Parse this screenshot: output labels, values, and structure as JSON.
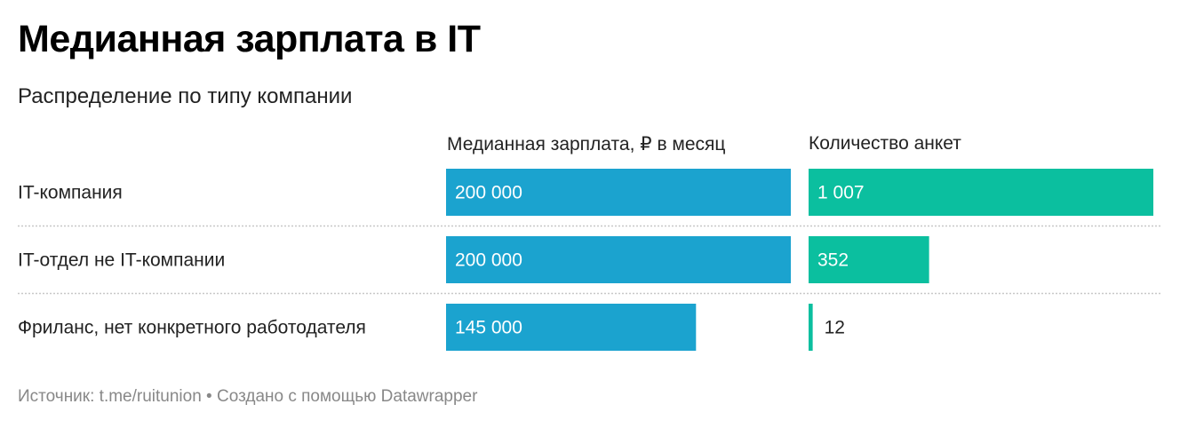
{
  "title": "Медианная зарплата в IT",
  "subtitle": "Распределение по типу компании",
  "columns": {
    "salary_header": "Медианная зарплата, ₽ в месяц",
    "count_header": "Количество анкет"
  },
  "footer": {
    "source": "Источник: t.me/ruitunion • Создано с помощью Datawrapper"
  },
  "colors": {
    "salary_bar": "#1ba3cf",
    "count_bar": "#0bbf9f"
  },
  "chart_data": {
    "type": "bar",
    "categories": [
      "IT-компания",
      "IT-отдел не IT-компании",
      "Фриланс, нет конкретного работодателя"
    ],
    "series": [
      {
        "name": "Медианная зарплата, ₽ в месяц",
        "values": [
          200000,
          200000,
          145000
        ],
        "labels": [
          "200 000",
          "200 000",
          "145 000"
        ]
      },
      {
        "name": "Количество анкет",
        "values": [
          1007,
          352,
          12
        ],
        "labels": [
          "1 007",
          "352",
          "12"
        ]
      }
    ]
  }
}
